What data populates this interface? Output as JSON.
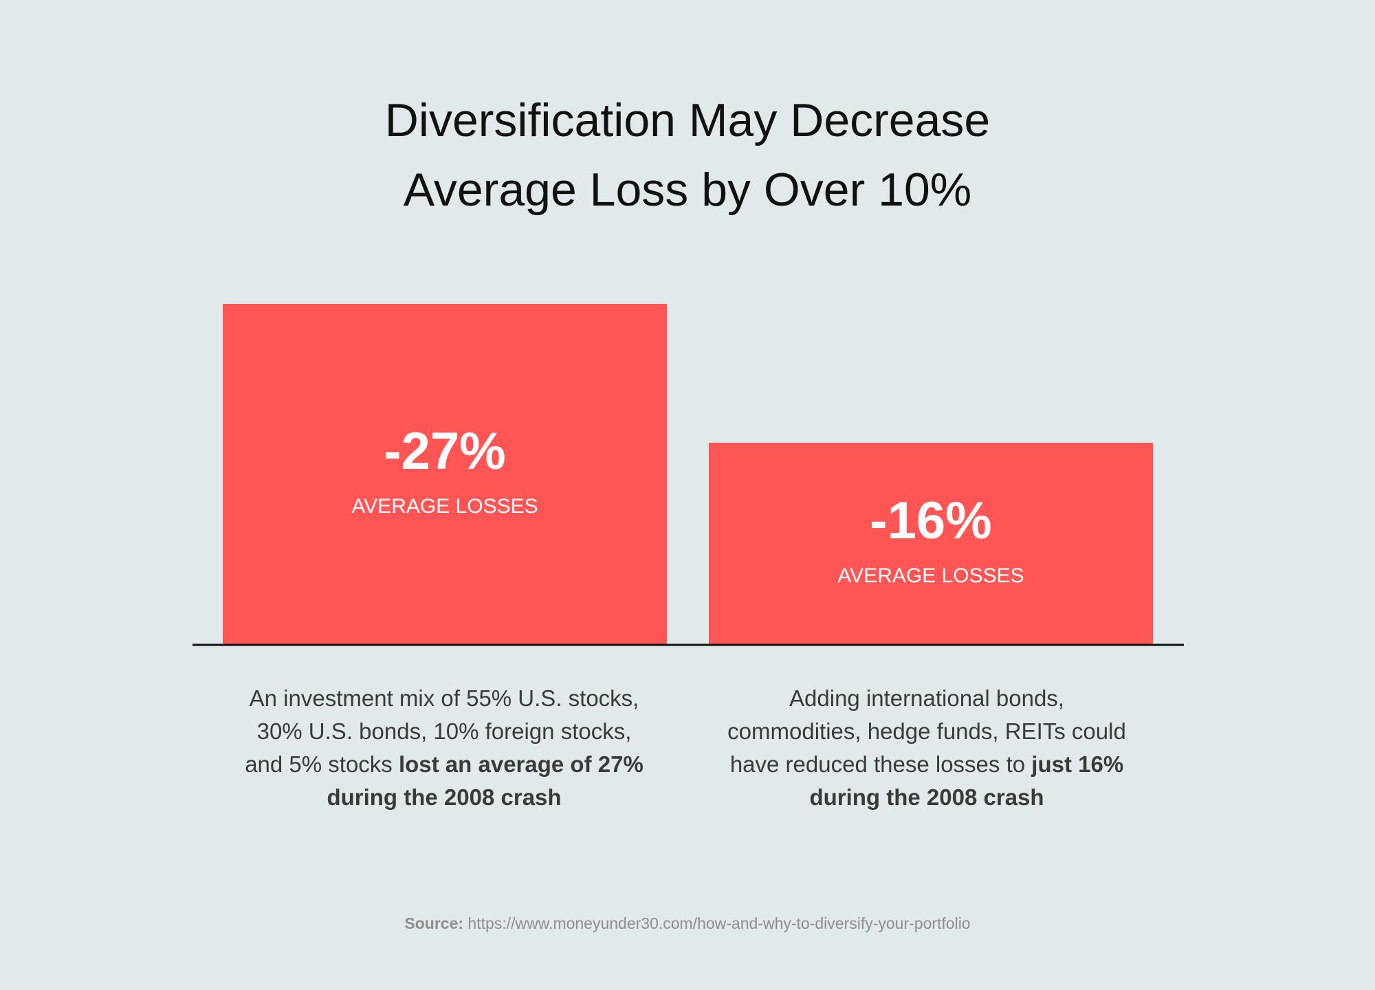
{
  "title": {
    "line1": "Diversification May Decrease",
    "line2": "Average Loss by Over 10%"
  },
  "colors": {
    "background": "#e2e9ea",
    "bar": "#ff5555",
    "baseline": "#111111",
    "title_text": "#111111",
    "body_text": "#3a3a3a",
    "source_text": "#8e8e8e"
  },
  "chart_data": {
    "type": "bar",
    "categories": [
      "",
      ""
    ],
    "values": [
      -27,
      -16
    ],
    "value_labels": [
      "-27%",
      "-16%"
    ],
    "sublabels": [
      "AVERAGE LOSSES",
      "AVERAGE LOSSES"
    ],
    "unit": "%",
    "title": "Diversification May Decrease Average Loss by Over 10%",
    "xlabel": "",
    "ylabel": "",
    "ylim": [
      0,
      27
    ],
    "grid": false,
    "legend": "none"
  },
  "descriptions": [
    {
      "line1": "An investment mix of 55% U.S. stocks,",
      "line2": "30% U.S. bonds, 10% foreign stocks,",
      "line3_plain": "and 5% stocks ",
      "line3_bold": "lost an average of 27%",
      "line4_bold": "during the 2008 crash"
    },
    {
      "line1": "Adding international bonds,",
      "line2": "commodities, hedge funds, REITs could",
      "line3_plain": "have reduced these losses to ",
      "line3_bold": "just 16%",
      "line4_bold": "during the 2008 crash"
    }
  ],
  "source": {
    "label": "Source:",
    "url": " https://www.moneyunder30.com/how-and-why-to-diversify-your-portfolio"
  }
}
